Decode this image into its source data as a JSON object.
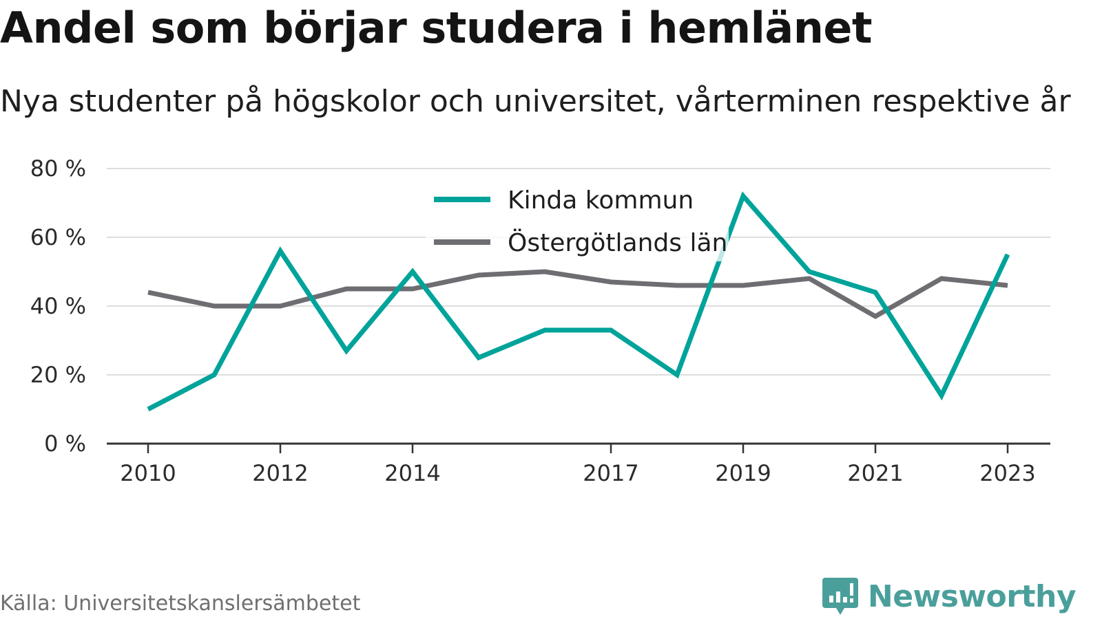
{
  "title": "Andel som börjar studera i hemlänet",
  "subtitle": "Nya studenter på högskolor och universitet, vårterminen respektive år",
  "source": "Källa: Universitetskanslersämbetet",
  "brand": "Newsworthy",
  "colors": {
    "kinda": "#00a39a",
    "ostergotland": "#6e6d72",
    "grid": "#dddddd",
    "axis": "#333333",
    "brand": "#4a9f9b"
  },
  "chart_data": {
    "type": "line",
    "x": [
      2010,
      2011,
      2012,
      2013,
      2014,
      2015,
      2016,
      2017,
      2018,
      2019,
      2020,
      2021,
      2022,
      2023
    ],
    "x_tick_labels": [
      "2010",
      "2012",
      "2014",
      "2017",
      "2019",
      "2021",
      "2023"
    ],
    "y_tick_labels": [
      "0 %",
      "20 %",
      "40 %",
      "60 %",
      "80 %"
    ],
    "ylim": [
      0,
      80
    ],
    "grid": true,
    "legend_position": "top-center",
    "series": [
      {
        "name": "Kinda kommun",
        "color": "#00a39a",
        "values": [
          10,
          20,
          56,
          27,
          50,
          25,
          33,
          33,
          20,
          72,
          50,
          44,
          14,
          55
        ]
      },
      {
        "name": "Östergötlands län",
        "color": "#6e6d72",
        "values": [
          44,
          40,
          40,
          45,
          45,
          49,
          50,
          47,
          46,
          46,
          48,
          37,
          48,
          46
        ]
      }
    ]
  }
}
